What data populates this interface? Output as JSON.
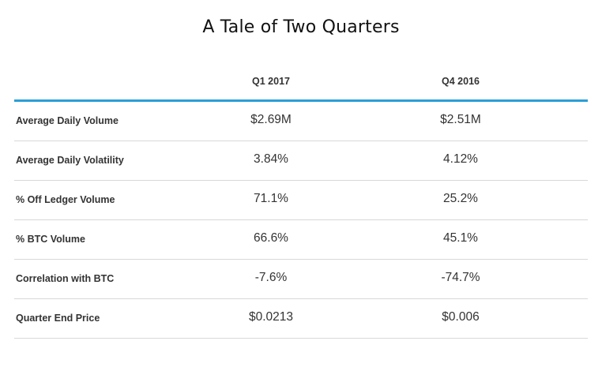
{
  "title": "A Tale of Two Quarters",
  "columns": [
    "Q1 2017",
    "Q4 2016"
  ],
  "rows": [
    {
      "label": "Average Daily Volume",
      "q1_2017": "$2.69M",
      "q4_2016": "$2.51M"
    },
    {
      "label": "Average Daily Volatility",
      "q1_2017": "3.84%",
      "q4_2016": "4.12%"
    },
    {
      "label": "% Off Ledger Volume",
      "q1_2017": "71.1%",
      "q4_2016": "25.2%"
    },
    {
      "label": "% BTC Volume",
      "q1_2017": "66.6%",
      "q4_2016": "45.1%"
    },
    {
      "label": "Correlation with BTC",
      "q1_2017": "-7.6%",
      "q4_2016": "-74.7%"
    },
    {
      "label": "Quarter End Price",
      "q1_2017": "$0.0213",
      "q4_2016": "$0.006"
    }
  ],
  "colors": {
    "header_rule": "#2a9fd6",
    "row_divider": "#d8d8d8"
  }
}
